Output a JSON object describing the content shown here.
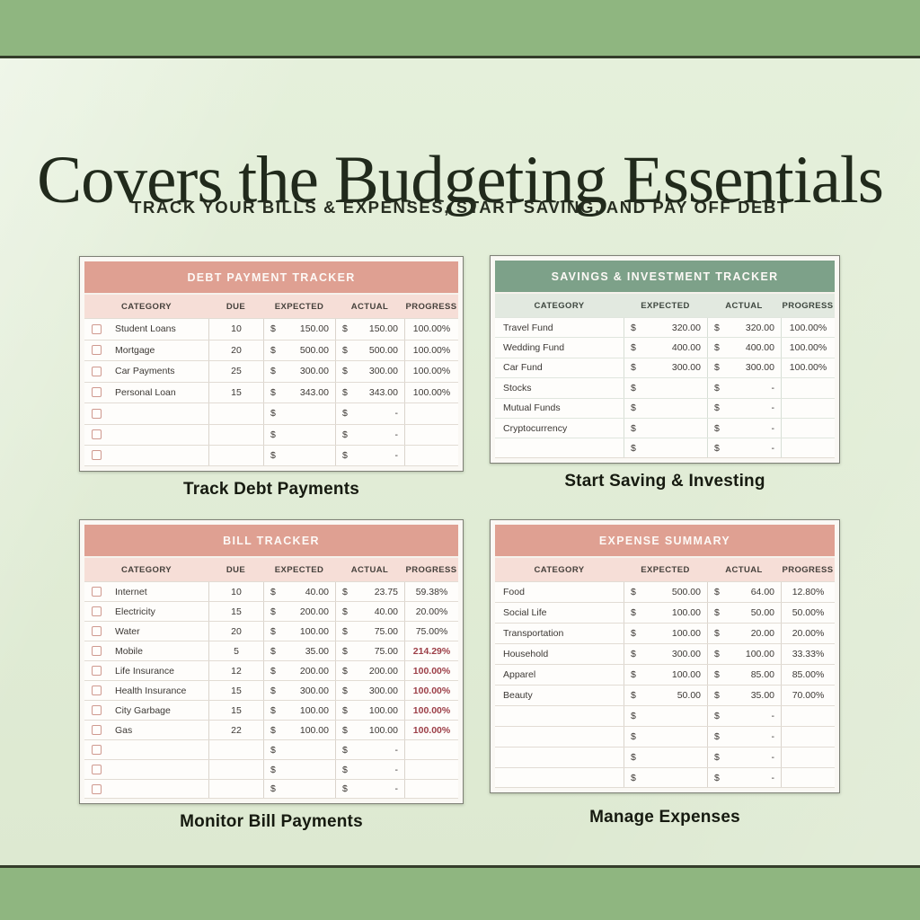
{
  "page": {
    "heading": "Covers the Budgeting Essentials",
    "subheading": "TRACK YOUR BILLS & EXPENSES, START SAVING, AND PAY OFF DEBT"
  },
  "colors": {
    "outer_band_green": "#8fb680",
    "divider_line": "#343d2a",
    "background_green": "#e2eed7",
    "pink_table_header": "#dfa092",
    "pink_column_header": "#f6ded7",
    "green_table_header": "#7da189",
    "green_column_header": "#e2e9e0",
    "red_progress_text": "#9c3e47",
    "checkbox_border": "#cf998f"
  },
  "tables": {
    "debt": {
      "title": "DEBT PAYMENT TRACKER",
      "caption": "Track Debt Payments",
      "columns": [
        "CATEGORY",
        "DUE",
        "EXPECTED",
        "ACTUAL",
        "PROGRESS"
      ],
      "has_checkbox": true,
      "has_due": true,
      "currency_symbol": "$",
      "rows": [
        {
          "c": "Student Loans",
          "d": "10",
          "e": "150.00",
          "a": "150.00",
          "p": "100.00%",
          "red": false
        },
        {
          "c": "Mortgage",
          "d": "20",
          "e": "500.00",
          "a": "500.00",
          "p": "100.00%",
          "red": false
        },
        {
          "c": "Car Payments",
          "d": "25",
          "e": "300.00",
          "a": "300.00",
          "p": "100.00%",
          "red": false
        },
        {
          "c": "Personal Loan",
          "d": "15",
          "e": "343.00",
          "a": "343.00",
          "p": "100.00%",
          "red": false
        },
        {
          "c": "",
          "d": "",
          "e": "",
          "a": "-",
          "p": "",
          "red": false
        },
        {
          "c": "",
          "d": "",
          "e": "",
          "a": "-",
          "p": "",
          "red": false
        },
        {
          "c": "",
          "d": "",
          "e": "",
          "a": "-",
          "p": "",
          "red": false
        }
      ]
    },
    "savings": {
      "title": "SAVINGS & INVESTMENT TRACKER",
      "caption": "Start Saving & Investing",
      "columns": [
        "CATEGORY",
        "EXPECTED",
        "ACTUAL",
        "PROGRESS"
      ],
      "has_checkbox": false,
      "has_due": false,
      "currency_symbol": "$",
      "rows": [
        {
          "c": "Travel Fund",
          "e": "320.00",
          "a": "320.00",
          "p": "100.00%",
          "red": false
        },
        {
          "c": "Wedding Fund",
          "e": "400.00",
          "a": "400.00",
          "p": "100.00%",
          "red": false
        },
        {
          "c": "Car Fund",
          "e": "300.00",
          "a": "300.00",
          "p": "100.00%",
          "red": false
        },
        {
          "c": "Stocks",
          "e": "",
          "a": "-",
          "p": "",
          "red": false
        },
        {
          "c": "Mutual Funds",
          "e": "",
          "a": "-",
          "p": "",
          "red": false
        },
        {
          "c": "Cryptocurrency",
          "e": "",
          "a": "-",
          "p": "",
          "red": false
        },
        {
          "c": "",
          "e": "",
          "a": "-",
          "p": "",
          "red": false
        }
      ]
    },
    "bill": {
      "title": "BILL TRACKER",
      "caption": "Monitor Bill Payments",
      "columns": [
        "CATEGORY",
        "DUE",
        "EXPECTED",
        "ACTUAL",
        "PROGRESS"
      ],
      "has_checkbox": true,
      "has_due": true,
      "currency_symbol": "$",
      "rows": [
        {
          "c": "Internet",
          "d": "10",
          "e": "40.00",
          "a": "23.75",
          "p": "59.38%",
          "red": false
        },
        {
          "c": "Electricity",
          "d": "15",
          "e": "200.00",
          "a": "40.00",
          "p": "20.00%",
          "red": false
        },
        {
          "c": "Water",
          "d": "20",
          "e": "100.00",
          "a": "75.00",
          "p": "75.00%",
          "red": false
        },
        {
          "c": "Mobile",
          "d": "5",
          "e": "35.00",
          "a": "75.00",
          "p": "214.29%",
          "red": true
        },
        {
          "c": "Life Insurance",
          "d": "12",
          "e": "200.00",
          "a": "200.00",
          "p": "100.00%",
          "red": true
        },
        {
          "c": "Health Insurance",
          "d": "15",
          "e": "300.00",
          "a": "300.00",
          "p": "100.00%",
          "red": true
        },
        {
          "c": "City Garbage",
          "d": "15",
          "e": "100.00",
          "a": "100.00",
          "p": "100.00%",
          "red": true
        },
        {
          "c": "Gas",
          "d": "22",
          "e": "100.00",
          "a": "100.00",
          "p": "100.00%",
          "red": true
        },
        {
          "c": "",
          "d": "",
          "e": "",
          "a": "-",
          "p": "",
          "red": false
        },
        {
          "c": "",
          "d": "",
          "e": "",
          "a": "-",
          "p": "",
          "red": false
        },
        {
          "c": "",
          "d": "",
          "e": "",
          "a": "-",
          "p": "",
          "red": false
        }
      ]
    },
    "expense": {
      "title": "EXPENSE SUMMARY",
      "caption": "Manage Expenses",
      "columns": [
        "CATEGORY",
        "EXPECTED",
        "ACTUAL",
        "PROGRESS"
      ],
      "has_checkbox": false,
      "has_due": false,
      "currency_symbol": "$",
      "rows": [
        {
          "c": "Food",
          "e": "500.00",
          "a": "64.00",
          "p": "12.80%",
          "red": false
        },
        {
          "c": "Social Life",
          "e": "100.00",
          "a": "50.00",
          "p": "50.00%",
          "red": false
        },
        {
          "c": "Transportation",
          "e": "100.00",
          "a": "20.00",
          "p": "20.00%",
          "red": false
        },
        {
          "c": "Household",
          "e": "300.00",
          "a": "100.00",
          "p": "33.33%",
          "red": false
        },
        {
          "c": "Apparel",
          "e": "100.00",
          "a": "85.00",
          "p": "85.00%",
          "red": false
        },
        {
          "c": "Beauty",
          "e": "50.00",
          "a": "35.00",
          "p": "70.00%",
          "red": false
        },
        {
          "c": "",
          "e": "",
          "a": "-",
          "p": "",
          "red": false
        },
        {
          "c": "",
          "e": "",
          "a": "-",
          "p": "",
          "red": false
        },
        {
          "c": "",
          "e": "",
          "a": "-",
          "p": "",
          "red": false
        },
        {
          "c": "",
          "e": "",
          "a": "-",
          "p": "",
          "red": false
        }
      ]
    }
  }
}
